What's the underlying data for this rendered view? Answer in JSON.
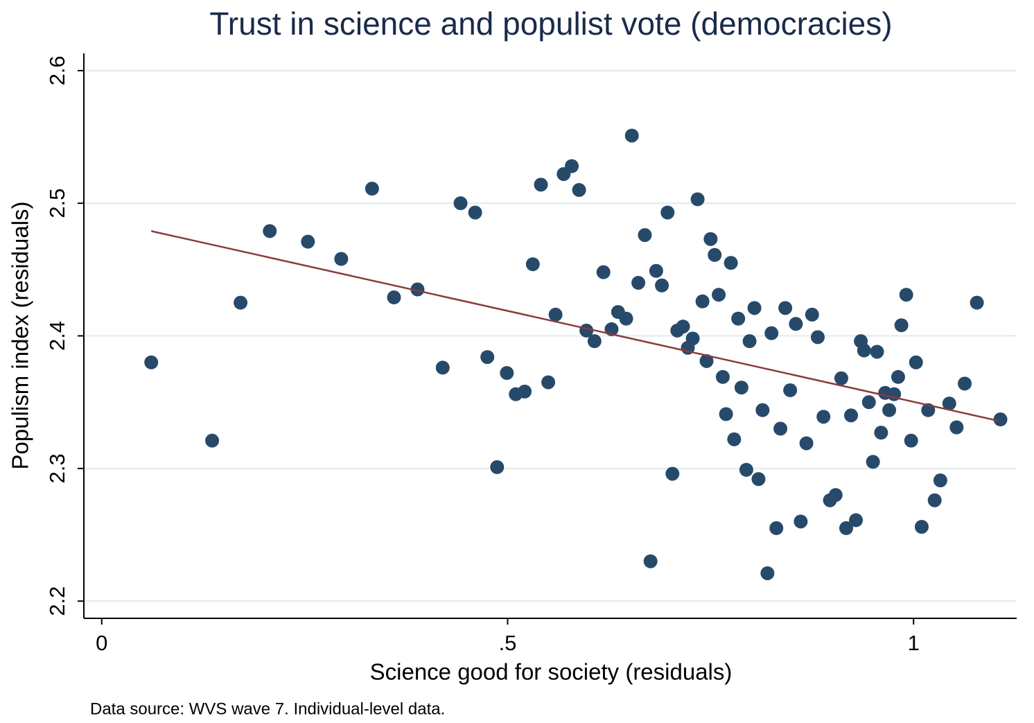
{
  "chart_data": {
    "type": "scatter",
    "title": "Trust in science and populist vote (democracies)",
    "x_label": "Science good for society (residuals)",
    "y_label": "Populism index (residuals)",
    "note": "Data source: WVS wave 7. Individual-level data.",
    "xlim": [
      -0.022,
      1.127
    ],
    "ylim": [
      2.187,
      2.613
    ],
    "xticks": [
      0,
      {
        "value": 0.5,
        "label": ".5"
      },
      1
    ],
    "yticks": [
      2.2,
      2.3,
      2.4,
      2.5,
      2.6
    ],
    "grid": true,
    "color": "#274a6b",
    "x": [
      0.061,
      0.136,
      0.171,
      0.207,
      0.254,
      0.295,
      0.333,
      0.36,
      0.389,
      0.42,
      0.442,
      0.46,
      0.475,
      0.487,
      0.499,
      0.51,
      0.521,
      0.531,
      0.541,
      0.55,
      0.559,
      0.569,
      0.579,
      0.588,
      0.597,
      0.607,
      0.618,
      0.628,
      0.636,
      0.646,
      0.653,
      0.661,
      0.669,
      0.676,
      0.683,
      0.69,
      0.697,
      0.703,
      0.709,
      0.716,
      0.722,
      0.728,
      0.734,
      0.74,
      0.745,
      0.75,
      0.755,
      0.76,
      0.765,
      0.769,
      0.775,
      0.779,
      0.784,
      0.788,
      0.794,
      0.798,
      0.804,
      0.809,
      0.814,
      0.82,
      0.825,
      0.831,
      0.836,
      0.842,
      0.848,
      0.855,
      0.861,
      0.868,
      0.875,
      0.882,
      0.889,
      0.897,
      0.904,
      0.911,
      0.917,
      0.923,
      0.929,
      0.935,
      0.939,
      0.945,
      0.95,
      0.955,
      0.96,
      0.965,
      0.97,
      0.976,
      0.981,
      0.985,
      0.991,
      0.997,
      1.003,
      1.01,
      1.018,
      1.026,
      1.033,
      1.044,
      1.053,
      1.063,
      1.078,
      1.107
    ],
    "values": [
      2.38,
      2.321,
      2.425,
      2.479,
      2.471,
      2.458,
      2.511,
      2.429,
      2.435,
      2.376,
      2.5,
      2.493,
      2.384,
      2.301,
      2.372,
      2.356,
      2.358,
      2.454,
      2.514,
      2.365,
      2.416,
      2.522,
      2.528,
      2.51,
      2.404,
      2.396,
      2.448,
      2.405,
      2.418,
      2.413,
      2.551,
      2.44,
      2.476,
      2.23,
      2.449,
      2.438,
      2.493,
      2.296,
      2.404,
      2.407,
      2.391,
      2.398,
      2.503,
      2.426,
      2.381,
      2.473,
      2.461,
      2.431,
      2.369,
      2.341,
      2.455,
      2.322,
      2.413,
      2.361,
      2.299,
      2.396,
      2.421,
      2.292,
      2.344,
      2.221,
      2.402,
      2.255,
      2.33,
      2.421,
      2.359,
      2.409,
      2.26,
      2.319,
      2.416,
      2.399,
      2.339,
      2.276,
      2.28,
      2.368,
      2.255,
      2.34,
      2.261,
      2.396,
      2.389,
      2.35,
      2.305,
      2.388,
      2.327,
      2.357,
      2.344,
      2.356,
      2.369,
      2.408,
      2.431,
      2.321,
      2.38,
      2.256,
      2.344,
      2.276,
      2.291,
      2.349,
      2.331,
      2.364,
      2.425,
      2.337
    ],
    "fit": {
      "x": [
        0.061,
        1.104
      ],
      "y": [
        2.479,
        2.336
      ],
      "color": "#8b3a3a"
    }
  }
}
